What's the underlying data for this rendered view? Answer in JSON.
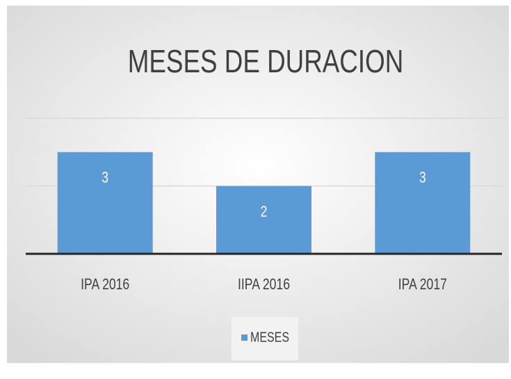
{
  "chart_data": {
    "type": "bar",
    "title": "MESES DE DURACION",
    "categories": [
      "IPA 2016",
      "IIPA 2016",
      "IPA 2017"
    ],
    "series": [
      {
        "name": "MESES",
        "color": "#5b9bd5",
        "values": [
          3,
          2,
          3
        ]
      }
    ],
    "ylim": [
      0,
      4
    ],
    "yticks": [
      0,
      2,
      4
    ],
    "grid": true,
    "legend": "bottom"
  }
}
